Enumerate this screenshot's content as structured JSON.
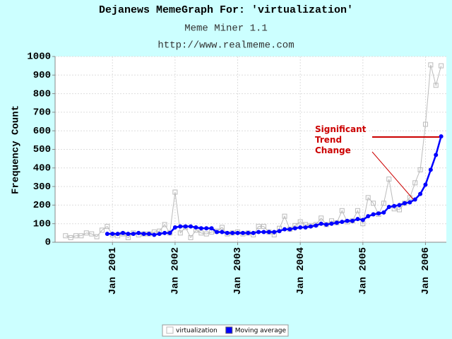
{
  "chart_data": {
    "type": "line",
    "title": "Dejanews MemeGraph For: 'virtualization'",
    "subtitle": "Meme Miner 1.1",
    "source": "http://www.realmeme.com",
    "y_label": "Frequency Count",
    "annotation": "Significant Trend Change",
    "grid": true,
    "legend": "bottom",
    "x": [
      "2000-04",
      "2000-05",
      "2000-06",
      "2000-07",
      "2000-08",
      "2000-09",
      "2000-10",
      "2000-11",
      "2000-12",
      "2001-01",
      "2001-02",
      "2001-03",
      "2001-04",
      "2001-05",
      "2001-06",
      "2001-07",
      "2001-08",
      "2001-09",
      "2001-10",
      "2001-11",
      "2001-12",
      "2002-01",
      "2002-02",
      "2002-03",
      "2002-04",
      "2002-05",
      "2002-06",
      "2002-07",
      "2002-08",
      "2002-09",
      "2002-10",
      "2002-11",
      "2002-12",
      "2003-01",
      "2003-02",
      "2003-03",
      "2003-04",
      "2003-05",
      "2003-06",
      "2003-07",
      "2003-08",
      "2003-09",
      "2003-10",
      "2003-11",
      "2003-12",
      "2004-01",
      "2004-02",
      "2004-03",
      "2004-04",
      "2004-05",
      "2004-06",
      "2004-07",
      "2004-08",
      "2004-09",
      "2004-10",
      "2004-11",
      "2004-12",
      "2005-01",
      "2005-02",
      "2005-03",
      "2005-04",
      "2005-05",
      "2005-06",
      "2005-07",
      "2005-08",
      "2005-09",
      "2005-10",
      "2005-11",
      "2005-12",
      "2006-01",
      "2006-02",
      "2006-03",
      "2006-04"
    ],
    "xlim": [
      "2000-02",
      "2006-05"
    ],
    "xticks": [
      {
        "value": "2001-01",
        "label": "Jan 2001"
      },
      {
        "value": "2002-01",
        "label": "Jan 2002"
      },
      {
        "value": "2003-01",
        "label": "Jan 2003"
      },
      {
        "value": "2004-01",
        "label": "Jan 2004"
      },
      {
        "value": "2005-01",
        "label": "Jan 2005"
      },
      {
        "value": "2006-01",
        "label": "Jan 2006"
      }
    ],
    "ylim": [
      0,
      1000
    ],
    "yticks": [
      0,
      100,
      200,
      300,
      400,
      500,
      600,
      700,
      800,
      900,
      1000
    ],
    "series": [
      {
        "name": "virtualization",
        "color": "#bbbbbb",
        "marker": "square-open",
        "values": [
          35,
          25,
          35,
          35,
          50,
          45,
          30,
          65,
          85,
          40,
          35,
          45,
          25,
          50,
          40,
          45,
          45,
          55,
          60,
          95,
          50,
          270,
          50,
          80,
          25,
          65,
          50,
          45,
          55,
          60,
          80,
          45,
          50,
          55,
          45,
          50,
          40,
          85,
          85,
          55,
          40,
          75,
          140,
          70,
          90,
          110,
          95,
          90,
          95,
          130,
          95,
          115,
          105,
          170,
          110,
          115,
          170,
          100,
          240,
          210,
          150,
          210,
          340,
          180,
          175,
          210,
          240,
          320,
          390,
          635,
          955,
          845,
          950
        ]
      },
      {
        "name": "Moving average",
        "color": "#0000ff",
        "marker": "circle",
        "values": [
          null,
          null,
          null,
          null,
          null,
          null,
          null,
          null,
          45,
          45,
          45,
          50,
          45,
          45,
          50,
          45,
          45,
          40,
          45,
          50,
          50,
          80,
          85,
          85,
          85,
          80,
          75,
          75,
          75,
          55,
          55,
          50,
          50,
          50,
          50,
          50,
          50,
          55,
          55,
          55,
          55,
          60,
          70,
          70,
          75,
          80,
          80,
          85,
          90,
          100,
          95,
          100,
          105,
          110,
          115,
          115,
          125,
          120,
          140,
          150,
          155,
          160,
          190,
          195,
          200,
          210,
          215,
          230,
          260,
          310,
          390,
          470,
          570
        ]
      }
    ]
  }
}
